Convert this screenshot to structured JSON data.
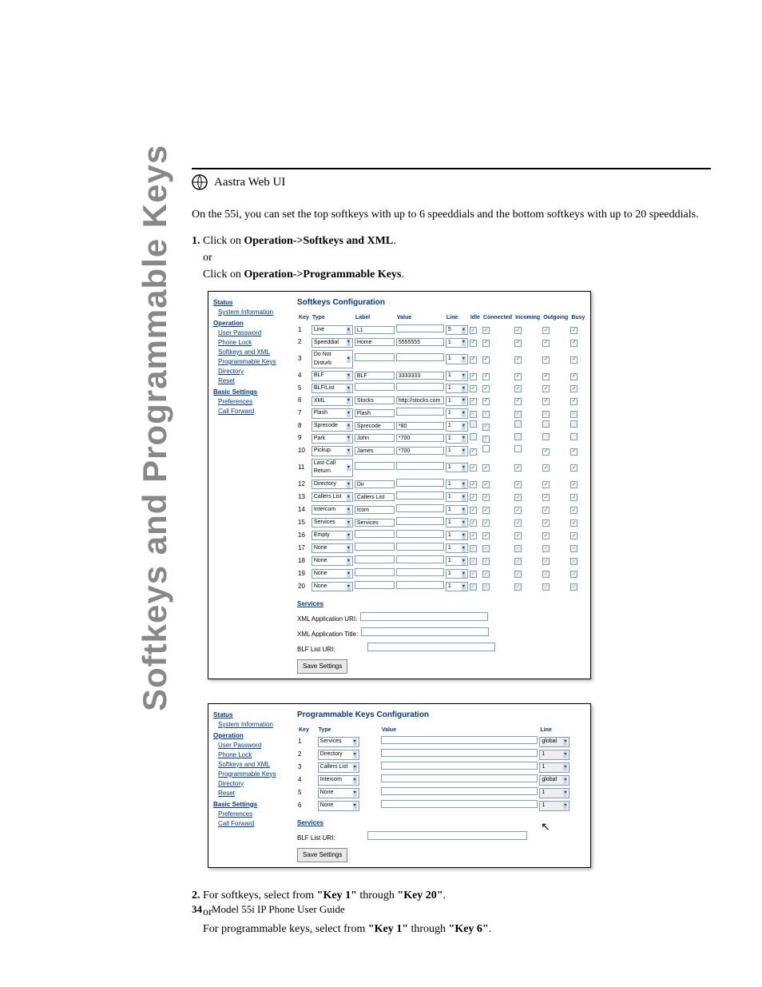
{
  "side_title": "Softkeys and Programmable Keys",
  "header": "Aastra Web UI",
  "intro": "On the 55i, you can set the top softkeys with up to 6 speeddials and the bottom softkeys with up to 20 speeddials.",
  "step1_num": "1.",
  "step1a_pre": "Click on ",
  "step1a_bold": "Operation->Softkeys and XML",
  "step1a_post": ".",
  "or": "or",
  "step1b_pre": "Click on ",
  "step1b_bold": "Operation->Programmable Keys",
  "step1b_post": ".",
  "nav": {
    "status": "Status",
    "sysinfo": "System Information",
    "operation": "Operation",
    "items1": [
      "User Password",
      "Phone Lock",
      "Softkeys and XML",
      "Programmable Keys",
      "Directory",
      "Reset"
    ],
    "basic": "Basic Settings",
    "items2": [
      "Preferences",
      "Call Forward"
    ]
  },
  "sk_title": "Softkeys Configuration",
  "sk_headers": [
    "Key",
    "Type",
    "Label",
    "Value",
    "Line",
    "Idle",
    "Connected",
    "Incoming",
    "Outgoing",
    "Busy"
  ],
  "sk_rows": [
    {
      "k": "1",
      "t": "Line",
      "l": "L1",
      "v": "",
      "ln": "5",
      "en": true,
      "c": [
        true,
        true,
        true,
        true,
        true
      ]
    },
    {
      "k": "2",
      "t": "Speeddial",
      "l": "Home",
      "v": "5555555",
      "ln": "1",
      "en": true,
      "c": [
        true,
        true,
        true,
        true,
        true
      ]
    },
    {
      "k": "3",
      "t": "Do Not Disturb",
      "l": "",
      "v": "",
      "ln": "1",
      "en": false,
      "c": [
        true,
        true,
        true,
        true,
        true
      ]
    },
    {
      "k": "4",
      "t": "BLF",
      "l": "BLF",
      "v": "3333333",
      "ln": "1",
      "en": true,
      "c": [
        true,
        true,
        true,
        true,
        true
      ]
    },
    {
      "k": "5",
      "t": "BLF/List",
      "l": "",
      "v": "",
      "ln": "1",
      "en": true,
      "c": [
        true,
        true,
        true,
        true,
        true
      ]
    },
    {
      "k": "6",
      "t": "XML",
      "l": "Stocks",
      "v": "http://stocks.com",
      "ln": "1",
      "en": false,
      "c": [
        true,
        true,
        true,
        true,
        true
      ]
    },
    {
      "k": "7",
      "t": "Flash",
      "l": "Flash",
      "v": "",
      "ln": "1",
      "en": false,
      "dis": true,
      "c": [
        true,
        true,
        true,
        true,
        true
      ]
    },
    {
      "k": "8",
      "t": "Sprecode",
      "l": "Sprecode",
      "v": "*80",
      "ln": "1",
      "en": false,
      "dis": true,
      "c": [
        false,
        true,
        false,
        false,
        false
      ]
    },
    {
      "k": "9",
      "t": "Park",
      "l": "John",
      "v": "*700",
      "ln": "1",
      "en": true,
      "dis": true,
      "c": [
        false,
        true,
        false,
        false,
        false
      ]
    },
    {
      "k": "10",
      "t": "Pickup",
      "l": "James",
      "v": "*700",
      "ln": "1",
      "en": true,
      "c": [
        true,
        false,
        false,
        true,
        true
      ]
    },
    {
      "k": "11",
      "t": "Last Call Return",
      "l": "",
      "v": "",
      "ln": "1",
      "en": true,
      "c": [
        true,
        true,
        true,
        true,
        true
      ]
    },
    {
      "k": "12",
      "t": "Directory",
      "l": "Dir",
      "v": "",
      "ln": "1",
      "en": false,
      "c": [
        true,
        true,
        true,
        true,
        true
      ]
    },
    {
      "k": "13",
      "t": "Callers List",
      "l": "Callers List",
      "v": "",
      "ln": "1",
      "en": false,
      "c": [
        true,
        true,
        true,
        true,
        true
      ]
    },
    {
      "k": "14",
      "t": "Intercom",
      "l": "Icom",
      "v": "",
      "ln": "1",
      "en": false,
      "c": [
        true,
        true,
        true,
        true,
        true
      ]
    },
    {
      "k": "15",
      "t": "Services",
      "l": "Services",
      "v": "",
      "ln": "1",
      "en": false,
      "c": [
        true,
        true,
        true,
        true,
        true
      ]
    },
    {
      "k": "16",
      "t": "Empty",
      "l": "",
      "v": "",
      "ln": "1",
      "en": false,
      "c": [
        true,
        true,
        true,
        true,
        true
      ]
    },
    {
      "k": "17",
      "t": "None",
      "l": "",
      "v": "",
      "ln": "1",
      "en": false,
      "dis": true,
      "c": [
        true,
        true,
        true,
        true,
        true
      ]
    },
    {
      "k": "18",
      "t": "None",
      "l": "",
      "v": "",
      "ln": "1",
      "en": false,
      "dis": true,
      "c": [
        true,
        true,
        true,
        true,
        true
      ]
    },
    {
      "k": "19",
      "t": "None",
      "l": "",
      "v": "",
      "ln": "1",
      "en": false,
      "dis": true,
      "c": [
        true,
        true,
        true,
        true,
        true
      ]
    },
    {
      "k": "20",
      "t": "None",
      "l": "",
      "v": "",
      "ln": "1",
      "en": false,
      "dis": true,
      "c": [
        true,
        true,
        true,
        true,
        true
      ]
    }
  ],
  "services": "Services",
  "svc1": "XML Application URI:",
  "svc2": "XML Application Title:",
  "svc3": "BLF List URI:",
  "save": "Save Settings",
  "pk_title": "Programmable Keys Configuration",
  "pk_headers": [
    "Key",
    "Type",
    "Value",
    "Line"
  ],
  "pk_rows": [
    {
      "k": "1",
      "t": "Services",
      "v": "",
      "ln": "global"
    },
    {
      "k": "2",
      "t": "Directory",
      "v": "",
      "ln": "1"
    },
    {
      "k": "3",
      "t": "Callers List",
      "v": "",
      "ln": "1"
    },
    {
      "k": "4",
      "t": "Intercom",
      "v": "",
      "ln": "global"
    },
    {
      "k": "5",
      "t": "None",
      "v": "",
      "ln": "1"
    },
    {
      "k": "6",
      "t": "None",
      "v": "",
      "ln": "1"
    }
  ],
  "step2_num": "2.",
  "step2a_pre": "For softkeys, select from ",
  "step2a_b1": "\"Key 1\"",
  "step2a_mid": " through ",
  "step2a_b2": "\"Key 20\"",
  "step2a_post": ".",
  "step2b_pre": "For programmable keys, select from ",
  "step2b_b1": "\"Key 1\"",
  "step2b_mid": " through ",
  "step2b_b2": "\"Key 6\"",
  "step2b_post": ".",
  "page_num": "34",
  "footer_text": "Model 55i IP Phone User Guide"
}
